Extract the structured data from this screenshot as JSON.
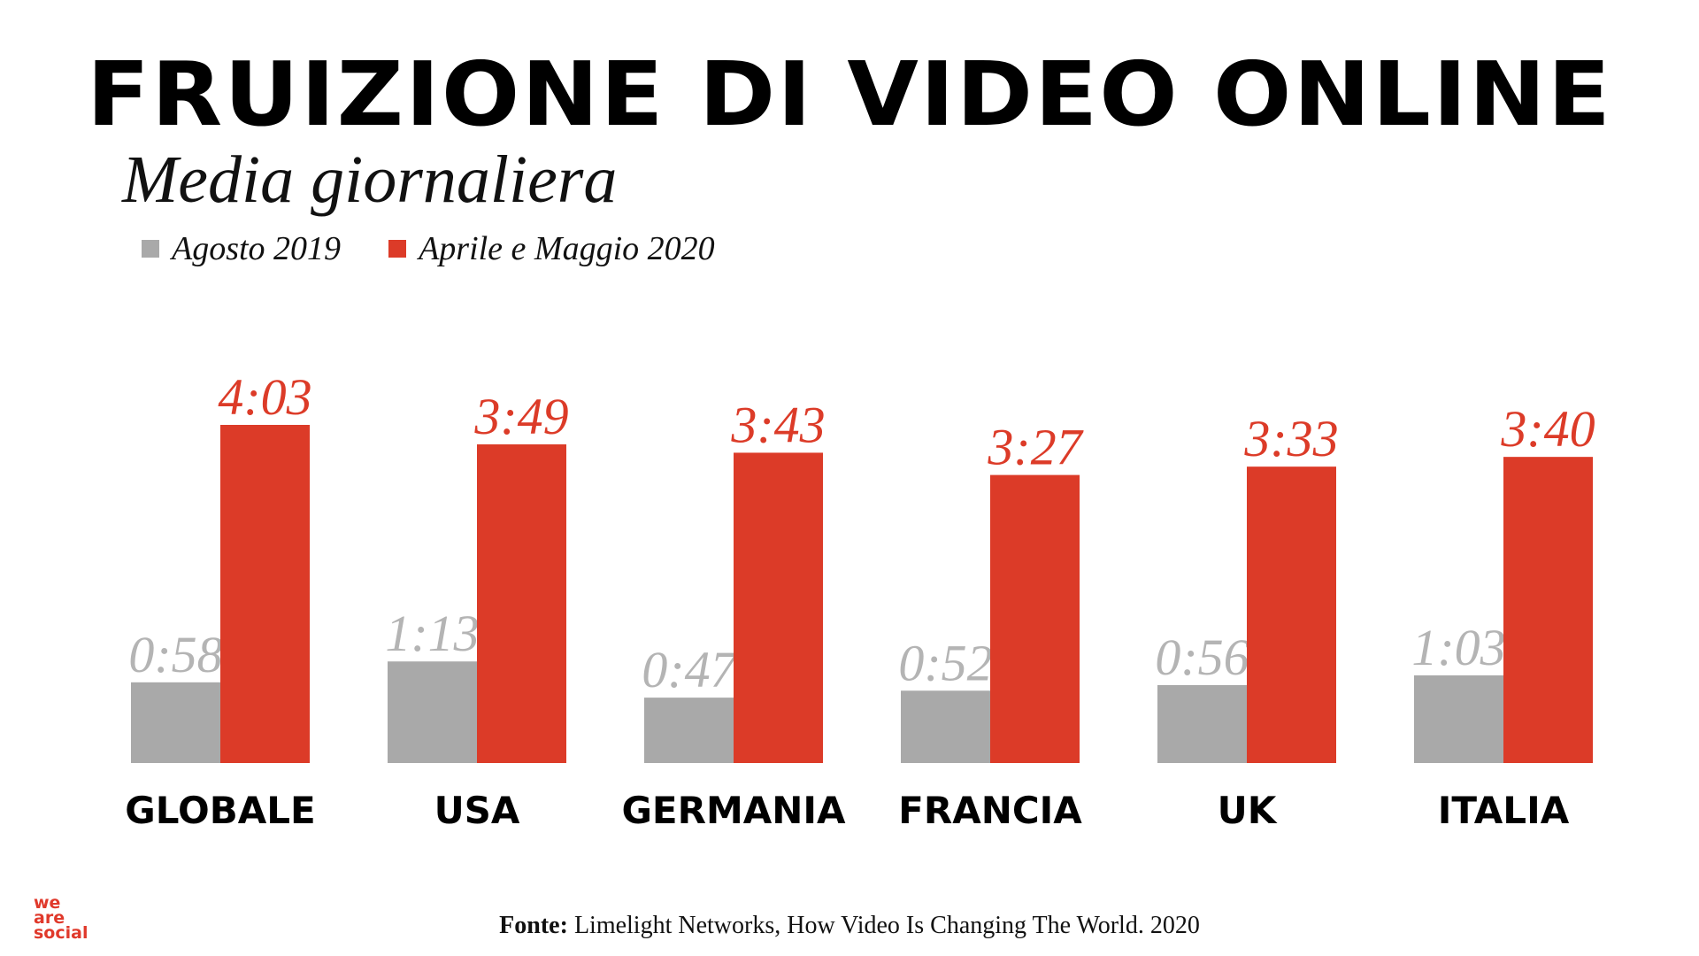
{
  "title": "FRUIZIONE DI VIDEO ONLINE",
  "subtitle": "Media giornaliera",
  "source": {
    "label": "Fonte:",
    "text": "Limelight Networks, How Video Is Changing The World. 2020"
  },
  "logo": {
    "lines": [
      "we",
      "are",
      "social"
    ]
  },
  "colors": {
    "gray": "#a9a9a9",
    "red": "#dc3b28",
    "gray_label": "#b4b4b4",
    "red_label": "#dc3b28"
  },
  "chart_data": {
    "type": "bar",
    "title": "FRUIZIONE DI VIDEO ONLINE",
    "subtitle": "Media giornaliera",
    "legend_position": "top-left",
    "grid": false,
    "categories": [
      "GLOBALE",
      "USA",
      "GERMANIA",
      "FRANCIA",
      "UK",
      "ITALIA"
    ],
    "series": [
      {
        "name": "Agosto 2019",
        "color": "#a9a9a9",
        "values": [
          58,
          73,
          47,
          52,
          56,
          63
        ],
        "labels": [
          "0:58",
          "1:13",
          "0:47",
          "0:52",
          "0:56",
          "1:03"
        ]
      },
      {
        "name": "Aprile e Maggio 2020",
        "color": "#dc3b28",
        "values": [
          243,
          229,
          223,
          207,
          213,
          220
        ],
        "labels": [
          "4:03",
          "3:49",
          "3:43",
          "3:27",
          "3:33",
          "3:40"
        ]
      }
    ],
    "ylim": [
      0,
      250
    ]
  }
}
